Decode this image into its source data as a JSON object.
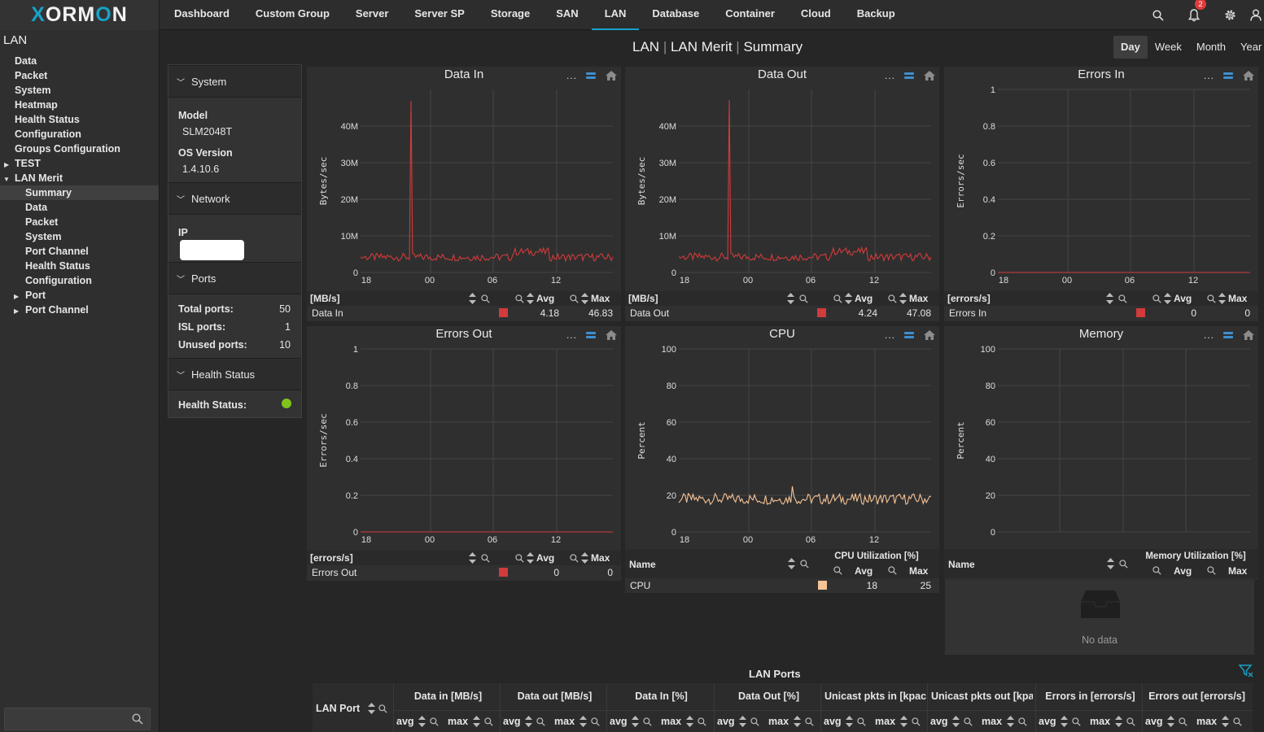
{
  "app": {
    "logo_text": "XORMON"
  },
  "nav": {
    "items": [
      "Dashboard",
      "Custom Group",
      "Server",
      "Server SP",
      "Storage",
      "SAN",
      "LAN",
      "Database",
      "Container",
      "Cloud",
      "Backup"
    ],
    "active": "LAN",
    "notification_count": "2"
  },
  "sidebar": {
    "title": "LAN",
    "items": [
      {
        "label": "Data"
      },
      {
        "label": "Packet"
      },
      {
        "label": "System"
      },
      {
        "label": "Heatmap"
      },
      {
        "label": "Health Status"
      },
      {
        "label": "Configuration"
      },
      {
        "label": "Groups Configuration"
      },
      {
        "label": "TEST"
      },
      {
        "label": "LAN Merit"
      },
      {
        "label": "Summary"
      },
      {
        "label": "Data"
      },
      {
        "label": "Packet"
      },
      {
        "label": "System"
      },
      {
        "label": "Port Channel"
      },
      {
        "label": "Health Status"
      },
      {
        "label": "Configuration"
      },
      {
        "label": "Port"
      },
      {
        "label": "Port Channel"
      }
    ],
    "search_value": ""
  },
  "header": {
    "crumb1": "LAN",
    "crumb2": "LAN Merit",
    "crumb3": "Summary",
    "sep": "|"
  },
  "range_tabs": [
    "Day",
    "Week",
    "Month",
    "Year"
  ],
  "info": {
    "system_title": "System",
    "model_label": "Model",
    "model_value": "SLM2048T",
    "os_label": "OS Version",
    "os_value": "1.4.10.6",
    "network_title": "Network",
    "ip_label": "IP",
    "ports_title": "Ports",
    "total_label": "Total ports:",
    "total_value": "50",
    "isl_label": "ISL ports:",
    "isl_value": "1",
    "unused_label": "Unused ports:",
    "unused_value": "10",
    "health_title": "Health Status",
    "health_label": "Health Status:",
    "health_color": "#7fc31c"
  },
  "chart_data": [
    {
      "type": "line",
      "title": "Data In",
      "ylabel": "Bytes/sec",
      "xticks": [
        "18",
        "00",
        "06",
        "12"
      ],
      "yticks": [
        "0",
        "10M",
        "20M",
        "30M",
        "40M"
      ],
      "ylim": [
        0,
        50000000
      ],
      "color": "#d13b3b",
      "series": [
        {
          "name": "Data In",
          "baseline": 4180000,
          "peak": 46830000,
          "peak_pos": 0.2
        }
      ],
      "legend": {
        "unit": "[MB/s]",
        "avg_label": "Avg",
        "max_label": "Max",
        "name": "Data In",
        "avg": "4.18",
        "max": "46.83"
      }
    },
    {
      "type": "line",
      "title": "Data Out",
      "ylabel": "Bytes/sec",
      "xticks": [
        "18",
        "00",
        "06",
        "12"
      ],
      "yticks": [
        "0",
        "10M",
        "20M",
        "30M",
        "40M"
      ],
      "ylim": [
        0,
        50000000
      ],
      "color": "#d13b3b",
      "series": [
        {
          "name": "Data Out",
          "baseline": 4240000,
          "peak": 47080000,
          "peak_pos": 0.2
        }
      ],
      "legend": {
        "unit": "[MB/s]",
        "avg_label": "Avg",
        "max_label": "Max",
        "name": "Data Out",
        "avg": "4.24",
        "max": "47.08"
      }
    },
    {
      "type": "line",
      "title": "Errors In",
      "ylabel": "Errors/sec",
      "xticks": [
        "18",
        "00",
        "06",
        "12"
      ],
      "yticks": [
        "0",
        "0.2",
        "0.4",
        "0.6",
        "0.8",
        "1"
      ],
      "ylim": [
        0,
        1
      ],
      "color": "#d13b3b",
      "series": [
        {
          "name": "Errors In",
          "baseline": 0,
          "peak": 0,
          "peak_pos": 0
        }
      ],
      "legend": {
        "unit": "[errors/s]",
        "avg_label": "Avg",
        "max_label": "Max",
        "name": "Errors In",
        "avg": "0",
        "max": "0"
      }
    },
    {
      "type": "line",
      "title": "Errors Out",
      "ylabel": "Errors/sec",
      "xticks": [
        "18",
        "00",
        "06",
        "12"
      ],
      "yticks": [
        "0",
        "0.2",
        "0.4",
        "0.6",
        "0.8",
        "1"
      ],
      "ylim": [
        0,
        1
      ],
      "color": "#d13b3b",
      "series": [
        {
          "name": "Errors Out",
          "baseline": 0,
          "peak": 0,
          "peak_pos": 0
        }
      ],
      "legend": {
        "unit": "[errors/s]",
        "avg_label": "Avg",
        "max_label": "Max",
        "name": "Errors Out",
        "avg": "0",
        "max": "0"
      }
    },
    {
      "type": "line",
      "title": "CPU",
      "ylabel": "Percent",
      "xticks": [
        "18",
        "00",
        "06",
        "12"
      ],
      "yticks": [
        "0",
        "20",
        "40",
        "60",
        "80",
        "100"
      ],
      "ylim": [
        0,
        100
      ],
      "color": "#f5c396",
      "series": [
        {
          "name": "CPU",
          "baseline": 18,
          "peak": 25,
          "peak_pos": 0.45
        }
      ],
      "legend": {
        "name_header": "Name",
        "group_header": "CPU Utilization [%]",
        "avg_label": "Avg",
        "max_label": "Max",
        "name": "CPU",
        "avg": "18",
        "max": "25"
      }
    },
    {
      "type": "line",
      "title": "Memory",
      "ylabel": "Percent",
      "xticks": [],
      "yticks": [
        "0",
        "20",
        "40",
        "60",
        "80",
        "100"
      ],
      "ylim": [
        0,
        100
      ],
      "color": "#d13b3b",
      "series": [],
      "legend": {
        "name_header": "Name",
        "group_header": "Memory Utilization [%]",
        "avg_label": "Avg",
        "max_label": "Max",
        "no_data": "No data"
      }
    }
  ],
  "ports": {
    "title": "LAN Ports",
    "port_col": "LAN Port",
    "groups": [
      "Data in [MB/s]",
      "Data out [MB/s]",
      "Data In [%]",
      "Data Out [%]",
      "Unicast pkts in [kpack",
      "Unicast pkts out [kpac",
      "Errors in [errors/s]",
      "Errors out [errors/s]"
    ],
    "sub_avg": "avg",
    "sub_max": "max"
  }
}
